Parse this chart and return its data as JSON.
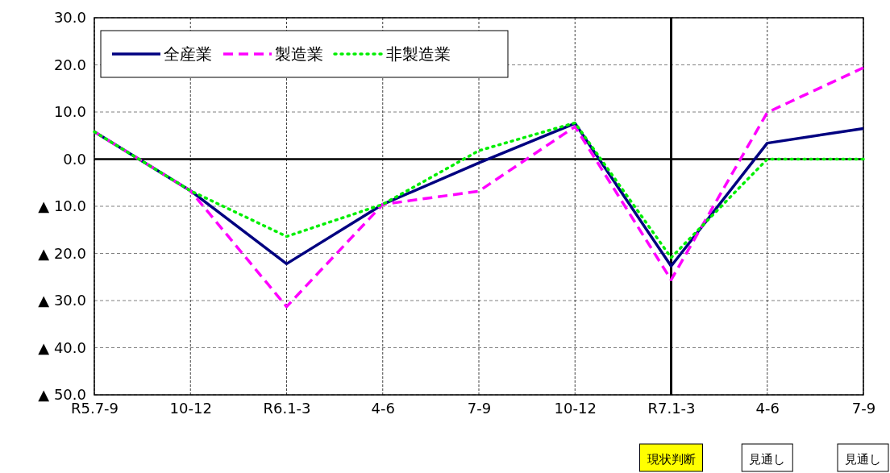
{
  "chart_data": {
    "type": "line",
    "categories": [
      "R5.7-9",
      "10-12",
      "R6.1-3",
      "4-6",
      "7-9",
      "10-12",
      "R7.1-3",
      "4-6",
      "7-9"
    ],
    "series": [
      {
        "name": "全産業",
        "color": "#000080",
        "line_style": "solid",
        "values": [
          5.8,
          -6.7,
          -22.2,
          -9.6,
          -0.8,
          7.6,
          -22.7,
          3.4,
          6.5
        ]
      },
      {
        "name": "製造業",
        "color": "#ff00ff",
        "line_style": "dashed",
        "values": [
          5.8,
          -6.7,
          -31.3,
          -9.6,
          -6.8,
          6.9,
          -25.6,
          9.9,
          19.4
        ]
      },
      {
        "name": "非製造業",
        "color": "#00ee00",
        "line_style": "dotted",
        "values": [
          5.8,
          -6.7,
          -16.4,
          -9.6,
          1.8,
          7.7,
          -20.9,
          0,
          0
        ]
      }
    ],
    "ylim": [
      -50,
      30
    ],
    "yticks": [
      {
        "value": -50,
        "label": "▲ 50.0"
      },
      {
        "value": -40,
        "label": "▲ 40.0"
      },
      {
        "value": -30,
        "label": "▲ 30.0"
      },
      {
        "value": -20,
        "label": "▲ 20.0"
      },
      {
        "value": -10,
        "label": "▲ 10.0"
      },
      {
        "value": 0,
        "label": "0.0"
      },
      {
        "value": 10,
        "label": "10.0"
      },
      {
        "value": 20,
        "label": "20.0"
      },
      {
        "value": 30,
        "label": "30.0"
      }
    ],
    "grid": true,
    "legend": "top left",
    "marker": "none",
    "ref_lines": [
      {
        "axis": "y",
        "value": 0,
        "color": "#000000"
      },
      {
        "axis": "x",
        "value": "R7.1-3",
        "color": "#000000"
      }
    ],
    "annotations": [
      "現状判断",
      "見通し",
      "見通し"
    ]
  }
}
